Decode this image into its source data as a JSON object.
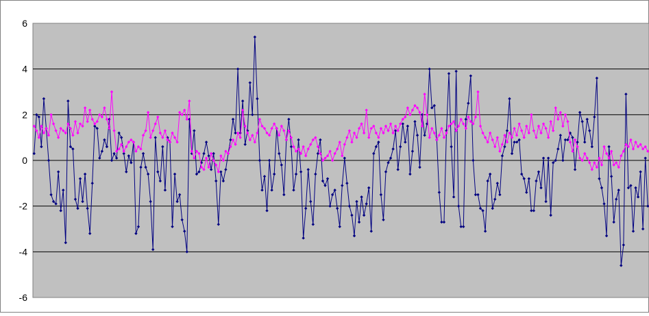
{
  "chart_data": {
    "type": "line",
    "title": "",
    "xlabel": "",
    "ylabel": "",
    "ylim": [
      -6,
      6
    ],
    "yticks": [
      "6",
      "4",
      "2",
      "0",
      "-2",
      "-4",
      "-6"
    ],
    "grid": true,
    "legend": "none",
    "colors": {
      "plot_background": "#c0c0c0",
      "gridline": "#000000",
      "frame": "#808080"
    },
    "series": [
      {
        "color": "#000080",
        "values": [
          0.3,
          2.0,
          1.9,
          0.6,
          2.7,
          1.4,
          0.0,
          -1.5,
          -1.8,
          -1.9,
          -0.5,
          -2.2,
          -1.3,
          -3.6,
          2.6,
          0.6,
          0.5,
          -1.7,
          -2.1,
          -0.8,
          -1.8,
          -0.6,
          -2.1,
          -3.2,
          -1.0,
          1.5,
          1.4,
          0.1,
          0.4,
          0.9,
          0.6,
          1.8,
          0.0,
          0.3,
          0.1,
          1.2,
          1.0,
          0.3,
          -0.5,
          0.2,
          -0.1,
          0.8,
          -3.2,
          -2.9,
          -0.3,
          0.3,
          -0.3,
          -0.6,
          -1.8,
          -3.9,
          1.0,
          -0.5,
          -0.9,
          0.6,
          -1.3,
          1.0,
          0.8,
          -2.9,
          -0.6,
          -1.8,
          -1.5,
          -2.6,
          -3.1,
          -4.0,
          1.8,
          0.3,
          1.3,
          -0.6,
          -0.5,
          -0.1,
          0.3,
          0.8,
          0.2,
          -0.4,
          0.3,
          -0.9,
          -2.8,
          -0.5,
          -0.9,
          -0.4,
          0.3,
          0.9,
          1.8,
          1.2,
          4.0,
          1.2,
          2.6,
          0.7,
          1.3,
          3.4,
          2.0,
          5.4,
          2.7,
          0.0,
          -1.3,
          -0.7,
          -2.2,
          0.0,
          -1.3,
          -0.6,
          1.4,
          0.3,
          -0.2,
          -1.5,
          0.9,
          1.8,
          0.6,
          -1.3,
          -0.6,
          0.9,
          -0.5,
          -3.4,
          -2.1,
          -0.4,
          -1.8,
          -2.8,
          -0.6,
          0.3,
          0.9,
          -0.9,
          -1.1,
          -0.8,
          -2.0,
          -1.5,
          -1.3,
          -2.1,
          -2.9,
          -1.1,
          0.1,
          -1.0,
          -2.0,
          -2.4,
          -3.3,
          -1.8,
          -2.7,
          -1.6,
          -2.4,
          -1.9,
          -1.2,
          -3.1,
          0.3,
          0.6,
          0.8,
          -1.5,
          -2.6,
          -0.5,
          -0.1,
          0.1,
          0.5,
          1.3,
          -0.4,
          0.6,
          1.6,
          0.8,
          1.5,
          -0.6,
          0.4,
          1.7,
          1.1,
          -0.3,
          2.0,
          1.1,
          1.6,
          4.0,
          2.3,
          2.4,
          0.9,
          -1.4,
          -2.7,
          -2.7,
          1.3,
          3.8,
          0.6,
          -1.6,
          3.9,
          -2.0,
          -2.9,
          -2.9,
          1.8,
          2.5,
          3.7,
          0.0,
          -1.5,
          -1.5,
          -2.1,
          -2.2,
          -3.1,
          -0.9,
          -0.6,
          -2.1,
          -1.7,
          -1.0,
          -1.5,
          0.2,
          0.6,
          1.3,
          2.7,
          0.3,
          0.8,
          0.8,
          0.9,
          -0.6,
          -0.8,
          -1.4,
          -0.8,
          -2.2,
          -2.2,
          -0.9,
          -0.5,
          -1.2,
          0.1,
          -1.8,
          0.1,
          -2.4,
          -0.1,
          0.0,
          0.5,
          1.1,
          0.0,
          0.9,
          0.9,
          1.2,
          1.0,
          -0.4,
          0.8,
          2.1,
          1.7,
          0.8,
          1.8,
          1.3,
          0.6,
          1.9,
          3.6,
          -0.8,
          -1.2,
          -1.9,
          -3.3,
          0.6,
          -0.7,
          -2.7,
          -1.7,
          -1.3,
          -4.6,
          -3.7,
          2.9,
          -1.2,
          -1.1,
          -3.1,
          -1.2,
          -1.6,
          -0.5,
          -3.0,
          0.1,
          -2.0
        ]
      },
      {
        "color": "#ff00ff",
        "values": [
          1.5,
          1.3,
          1.0,
          1.5,
          1.2,
          1.4,
          1.1,
          2.0,
          1.6,
          1.3,
          1.0,
          1.4,
          1.3,
          1.2,
          1.6,
          1.4,
          1.1,
          1.7,
          1.2,
          1.6,
          1.5,
          2.3,
          1.7,
          2.2,
          1.8,
          1.6,
          1.7,
          2.0,
          1.9,
          2.3,
          1.8,
          1.4,
          3.0,
          1.3,
          0.4,
          0.5,
          0.7,
          0.4,
          0.6,
          0.8,
          0.9,
          0.8,
          0.4,
          0.6,
          0.5,
          1.1,
          1.3,
          2.1,
          1.0,
          1.3,
          1.6,
          1.9,
          1.2,
          1.0,
          1.3,
          0.9,
          0.8,
          1.2,
          1.0,
          0.8,
          2.1,
          2.0,
          2.2,
          1.8,
          2.6,
          0.4,
          0.1,
          0.4,
          0.3,
          -0.3,
          -0.4,
          0.1,
          -0.3,
          0.3,
          0.0,
          -0.2,
          -0.5,
          0.2,
          0.0,
          0.4,
          0.3,
          0.6,
          0.9,
          0.7,
          1.2,
          1.0,
          2.2,
          1.5,
          1.2,
          0.9,
          1.1,
          0.8,
          1.2,
          1.8,
          1.5,
          1.4,
          1.2,
          1.1,
          1.4,
          1.6,
          1.4,
          1.1,
          1.5,
          1.3,
          0.9,
          1.3,
          1.0,
          0.6,
          0.4,
          0.5,
          0.3,
          0.6,
          0.2,
          0.5,
          0.7,
          0.9,
          1.0,
          0.6,
          0.3,
          0.0,
          0.1,
          0.2,
          0.4,
          0.0,
          0.3,
          0.5,
          0.8,
          0.2,
          0.7,
          1.0,
          1.3,
          0.8,
          1.2,
          1.0,
          1.4,
          1.6,
          1.2,
          2.2,
          1.0,
          1.4,
          1.5,
          1.2,
          1.0,
          1.4,
          1.2,
          1.5,
          1.3,
          1.6,
          1.2,
          1.5,
          1.3,
          1.6,
          1.8,
          1.9,
          2.3,
          2.0,
          2.2,
          2.4,
          2.3,
          2.1,
          1.5,
          2.9,
          2.0,
          1.0,
          1.4,
          1.2,
          0.9,
          1.1,
          1.4,
          1.0,
          1.2,
          1.5,
          1.6,
          1.7,
          1.3,
          1.5,
          1.8,
          1.6,
          1.4,
          1.9,
          1.7,
          1.6,
          1.9,
          3.0,
          1.5,
          1.2,
          1.0,
          0.8,
          1.2,
          0.9,
          0.6,
          1.0,
          0.4,
          0.7,
          1.1,
          0.8,
          1.2,
          1.0,
          1.4,
          1.1,
          1.6,
          1.3,
          1.0,
          1.5,
          1.2,
          2.0,
          1.3,
          1.0,
          1.5,
          1.2,
          1.6,
          1.4,
          1.0,
          1.7,
          1.3,
          2.3,
          1.8,
          2.1,
          1.5,
          2.0,
          1.7,
          0.8,
          0.4,
          0.9,
          0.6,
          0.1,
          0.0,
          0.3,
          0.1,
          -0.1,
          -0.4,
          -0.1,
          -0.3,
          0.1,
          -0.2,
          0.6,
          0.3,
          0.1,
          0.4,
          -0.2,
          -0.1,
          -0.3,
          0.2,
          0.4,
          0.7,
          0.6,
          0.9,
          0.5,
          0.8,
          0.6,
          0.7,
          0.5,
          0.6,
          0.4
        ]
      }
    ]
  }
}
